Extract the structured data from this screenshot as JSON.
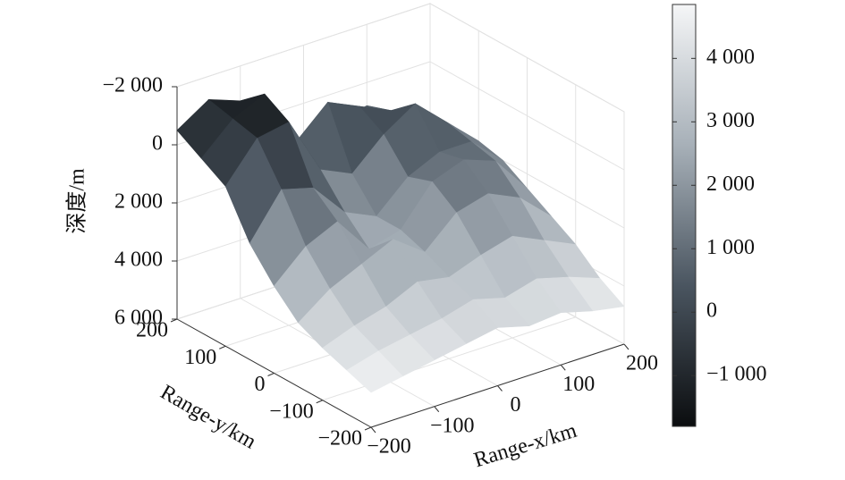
{
  "chart_data": {
    "type": "surface3d",
    "xlabel": "Range-x/km",
    "ylabel": "Range-y/km",
    "zlabel": "深度/m",
    "x": [
      -200,
      -150,
      -100,
      -50,
      0,
      50,
      100,
      150,
      200
    ],
    "y": [
      -200,
      -150,
      -100,
      -50,
      0,
      50,
      100,
      150,
      200
    ],
    "z": [
      [
        4800,
        4600,
        4400,
        4200,
        4000,
        4300,
        4200,
        4500,
        4700
      ],
      [
        4500,
        4200,
        4000,
        3800,
        3500,
        3800,
        3500,
        3800,
        4200
      ],
      [
        4200,
        3800,
        3500,
        3000,
        3200,
        2800,
        2500,
        3000,
        3500
      ],
      [
        3800,
        3000,
        2500,
        2000,
        2800,
        1800,
        1500,
        2000,
        3000
      ],
      [
        3000,
        2000,
        1500,
        2800,
        2500,
        1200,
        800,
        1200,
        2500
      ],
      [
        2000,
        500,
        800,
        2000,
        2500,
        1500,
        1000,
        1000,
        2000
      ],
      [
        500,
        -800,
        -1000,
        1000,
        1500,
        500,
        -200,
        800,
        1800
      ],
      [
        0,
        -1000,
        -1500,
        500,
        -500,
        0,
        500,
        1200,
        2000
      ],
      [
        -500,
        -1200,
        -800,
        1500,
        2500,
        1000,
        800,
        1500,
        2500
      ]
    ],
    "xlim": [
      -200,
      200
    ],
    "ylim": [
      -200,
      200
    ],
    "zlim": [
      -2000,
      6000
    ],
    "z_inverted": true,
    "xticks": [
      {
        "value": -200,
        "label": "−200"
      },
      {
        "value": -100,
        "label": "−100"
      },
      0,
      100,
      200
    ],
    "yticks": [
      {
        "value": -200,
        "label": "−200"
      },
      {
        "value": -100,
        "label": "−100"
      },
      0,
      100,
      200
    ],
    "zticks": [
      {
        "value": -2000,
        "label": "−2 000"
      },
      0,
      {
        "value": 2000,
        "label": "2 000"
      },
      {
        "value": 4000,
        "label": "4 000"
      },
      {
        "value": 6000,
        "label": "6 000"
      }
    ],
    "grid": true,
    "colormap": [
      "#0b0d0f",
      "#4a5560",
      "#a7b0b8",
      "#f5f6f7"
    ],
    "clim": [
      -1800,
      4850
    ],
    "cticks": [
      {
        "value": -1000,
        "label": "−1 000"
      },
      0,
      {
        "value": 1000,
        "label": "1 000"
      },
      {
        "value": 2000,
        "label": "2 000"
      },
      {
        "value": 3000,
        "label": "3 000"
      },
      {
        "value": 4000,
        "label": "4 000"
      }
    ]
  }
}
